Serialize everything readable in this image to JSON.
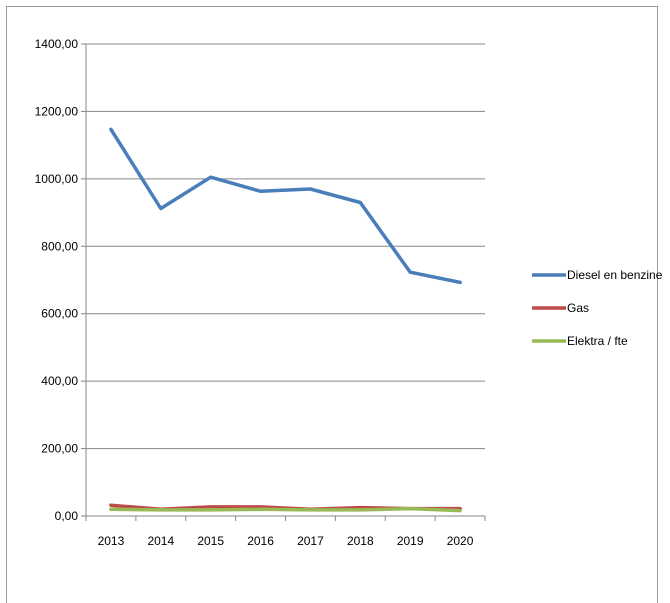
{
  "chart_data": {
    "type": "line",
    "title": "",
    "xlabel": "",
    "ylabel": "",
    "categories": [
      "2013",
      "2014",
      "2015",
      "2016",
      "2017",
      "2018",
      "2019",
      "2020"
    ],
    "y_ticks": [
      "0,00",
      "200,00",
      "400,00",
      "600,00",
      "800,00",
      "1000,00",
      "1200,00",
      "1400,00"
    ],
    "ylim": [
      0,
      1400
    ],
    "grid": true,
    "legend_position": "right",
    "series": [
      {
        "name": "Diesel en benzine",
        "color": "#4a7ebb",
        "values": [
          1147,
          912,
          1005,
          963,
          970,
          930,
          723,
          693
        ]
      },
      {
        "name": "Gas",
        "color": "#be4b48",
        "values": [
          32,
          20,
          27,
          27,
          20,
          25,
          22,
          22
        ]
      },
      {
        "name": "Elektra / fte",
        "color": "#98b954",
        "values": [
          20,
          18,
          18,
          20,
          18,
          18,
          22,
          16
        ]
      }
    ]
  }
}
